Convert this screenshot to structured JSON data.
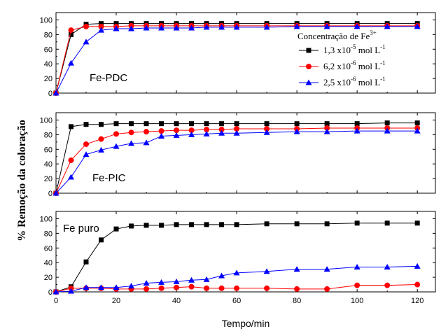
{
  "chart_data": {
    "type": "line",
    "xlabel": "Tempo/min",
    "ylabel": "% Remoção da coloração",
    "xlim": [
      0,
      126
    ],
    "xticks": [
      0,
      20,
      40,
      60,
      80,
      100,
      120
    ],
    "ylim": [
      0,
      110
    ],
    "yticks": [
      0,
      20,
      40,
      60,
      80,
      100
    ],
    "legend": {
      "title": "Concentração de Fe",
      "title_sup": "3+",
      "placement": "top-right",
      "entries": [
        {
          "base": "1,3 x10",
          "exp": "-5",
          "unit": " mol  L",
          "unit_exp": "-1"
        },
        {
          "base": "6,2 x10",
          "exp": "-6",
          "unit": " mol  L",
          "unit_exp": "-1"
        },
        {
          "base": "2,5 x10",
          "exp": "-6",
          "unit": " mol  L",
          "unit_exp": "-1"
        }
      ]
    },
    "series_styles": [
      {
        "color": "#000000",
        "marker": "square"
      },
      {
        "color": "#ff0000",
        "marker": "circle"
      },
      {
        "color": "#0000ff",
        "marker": "triangle"
      }
    ],
    "panels": [
      {
        "label": "Fe-PDC",
        "series": [
          {
            "x": [
              0,
              5,
              10,
              15,
              20,
              25,
              30,
              35,
              40,
              45,
              50,
              55,
              60,
              70,
              80,
              90,
              100,
              110,
              120
            ],
            "y": [
              0,
              80,
              94,
              95,
              95,
              95,
              95,
              95,
              95,
              95,
              95,
              95,
              95,
              95,
              95,
              95,
              95,
              95,
              95
            ]
          },
          {
            "x": [
              0,
              5,
              10,
              15,
              20,
              25,
              30,
              35,
              40,
              45,
              50,
              55,
              60,
              70,
              80,
              90,
              100,
              110,
              120
            ],
            "y": [
              0,
              86,
              91,
              91,
              91,
              92,
              92,
              92,
              92,
              92,
              92,
              92,
              92,
              92,
              92,
              92,
              92,
              92,
              92
            ]
          },
          {
            "x": [
              0,
              5,
              10,
              15,
              20,
              25,
              30,
              35,
              40,
              45,
              50,
              55,
              60,
              70,
              80,
              90,
              100,
              110,
              120
            ],
            "y": [
              0,
              41,
              70,
              86,
              88,
              88,
              89,
              89,
              89,
              89,
              90,
              90,
              90,
              90,
              91,
              91,
              91,
              91,
              91
            ]
          }
        ]
      },
      {
        "label": "Fe-PIC",
        "series": [
          {
            "x": [
              0,
              5,
              10,
              15,
              20,
              25,
              30,
              35,
              40,
              45,
              50,
              55,
              60,
              70,
              80,
              90,
              100,
              110,
              120
            ],
            "y": [
              0,
              91,
              94,
              94,
              95,
              95,
              95,
              95,
              95,
              95,
              95,
              95,
              95,
              95,
              95,
              95,
              95,
              96,
              96
            ]
          },
          {
            "x": [
              0,
              5,
              10,
              15,
              20,
              25,
              30,
              35,
              40,
              45,
              50,
              55,
              60,
              70,
              80,
              90,
              100,
              110,
              120
            ],
            "y": [
              0,
              45,
              67,
              74,
              81,
              83,
              84,
              85,
              86,
              86,
              87,
              87,
              88,
              88,
              88,
              89,
              89,
              89,
              89
            ]
          },
          {
            "x": [
              0,
              5,
              10,
              15,
              20,
              25,
              30,
              35,
              40,
              45,
              50,
              55,
              60,
              70,
              80,
              90,
              100,
              110,
              120
            ],
            "y": [
              0,
              22,
              53,
              59,
              64,
              68,
              69,
              78,
              79,
              80,
              81,
              82,
              82,
              83,
              84,
              84,
              85,
              85,
              85
            ]
          }
        ]
      },
      {
        "label": "Fe puro",
        "series": [
          {
            "x": [
              0,
              5,
              10,
              15,
              20,
              25,
              30,
              35,
              40,
              45,
              50,
              55,
              60,
              70,
              80,
              90,
              100,
              110,
              120
            ],
            "y": [
              0,
              7,
              41,
              71,
              86,
              90,
              91,
              91,
              92,
              92,
              92,
              92,
              92,
              93,
              93,
              93,
              94,
              94,
              94
            ]
          },
          {
            "x": [
              0,
              5,
              10,
              15,
              20,
              25,
              30,
              35,
              40,
              45,
              50,
              55,
              60,
              70,
              80,
              90,
              100,
              110,
              120
            ],
            "y": [
              0,
              5,
              5,
              5,
              4,
              4,
              4,
              5,
              6,
              7,
              5,
              5,
              5,
              5,
              4,
              4,
              9,
              9,
              10
            ]
          },
          {
            "x": [
              0,
              5,
              10,
              15,
              20,
              25,
              30,
              35,
              40,
              45,
              50,
              55,
              60,
              70,
              80,
              90,
              100,
              110,
              120
            ],
            "y": [
              0,
              1,
              6,
              6,
              6,
              8,
              12,
              13,
              14,
              16,
              17,
              22,
              26,
              28,
              31,
              31,
              34,
              34,
              35
            ]
          }
        ]
      }
    ]
  }
}
